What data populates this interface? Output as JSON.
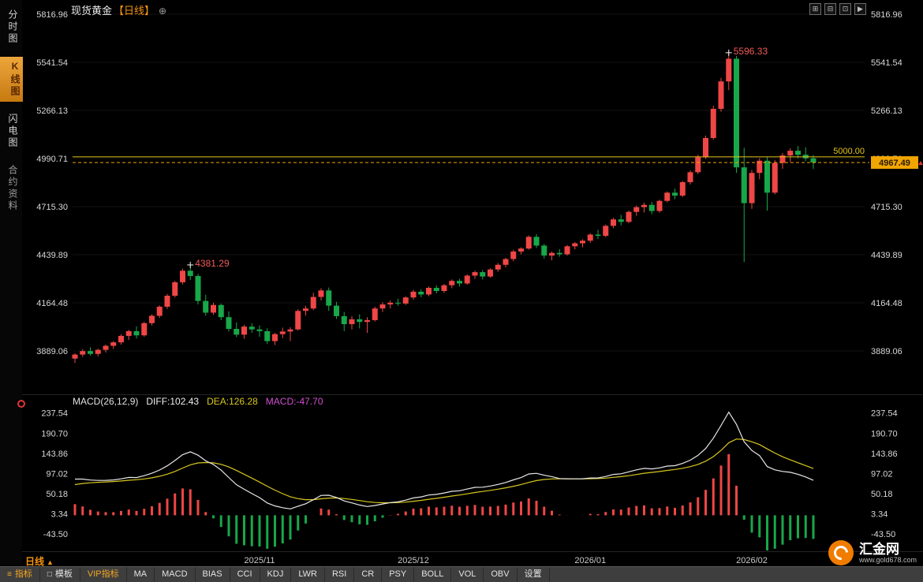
{
  "app": {
    "title_instrument": "现货黄金",
    "title_period": "【日线】",
    "add_icon": "⊕",
    "window_icons": [
      "⊞",
      "⊟",
      "⊡",
      "▶"
    ]
  },
  "sidebar": {
    "items": [
      {
        "label": "分时图",
        "active": false
      },
      {
        "label": "K线图",
        "active": true
      },
      {
        "label": "闪电图",
        "active": false
      },
      {
        "label": "合约资料",
        "active": false
      }
    ]
  },
  "footer": {
    "period_label": "日线",
    "period_arrow": "▲",
    "toolbar": [
      {
        "label": "指标",
        "accent": true,
        "icon": "≡",
        "name": "indicator-menu-button"
      },
      {
        "label": "模板",
        "accent": false,
        "icon": "□",
        "name": "template-menu-button"
      },
      {
        "label": "VIP指标",
        "accent": true,
        "name": "vip-indicator-button"
      },
      {
        "label": "MA",
        "name": "indicator-ma-button"
      },
      {
        "label": "MACD",
        "name": "indicator-macd-button"
      },
      {
        "label": "BIAS",
        "name": "indicator-bias-button"
      },
      {
        "label": "CCI",
        "name": "indicator-cci-button"
      },
      {
        "label": "KDJ",
        "name": "indicator-kdj-button"
      },
      {
        "label": "LWR",
        "name": "indicator-lwr-button"
      },
      {
        "label": "RSI",
        "name": "indicator-rsi-button"
      },
      {
        "label": "CR",
        "name": "indicator-cr-button"
      },
      {
        "label": "PSY",
        "name": "indicator-psy-button"
      },
      {
        "label": "BOLL",
        "name": "indicator-boll-button"
      },
      {
        "label": "VOL",
        "name": "indicator-vol-button"
      },
      {
        "label": "OBV",
        "name": "indicator-obv-button"
      },
      {
        "label": "设置",
        "name": "settings-button"
      }
    ],
    "logo": {
      "name": "汇金网",
      "url": "www.gold678.com"
    }
  },
  "chart_data": {
    "type": "candlestick",
    "instrument": "现货黄金",
    "period": "日线",
    "y_axis_labels": [
      5816.96,
      5541.54,
      5266.13,
      4990.71,
      4715.3,
      4439.89,
      4164.48,
      3889.06
    ],
    "y_range": [
      3654,
      5862
    ],
    "macd_axis_labels": [
      237.54,
      190.7,
      143.86,
      97.02,
      50.18,
      3.34,
      -43.5
    ],
    "macd_range": [
      -78,
      248
    ],
    "x_axis_labels": [
      {
        "label": "2025/11",
        "index": 24
      },
      {
        "label": "2025/12",
        "index": 44
      },
      {
        "label": "2026/01",
        "index": 67
      },
      {
        "label": "2026/02",
        "index": 88
      }
    ],
    "macd_header": {
      "title": "MACD(26,12,9)",
      "diff_label": "DIFF:102.43",
      "dea_label": "DEA:126.28",
      "macd_label": "MACD:-47.70"
    },
    "annotations": {
      "high_labels": [
        {
          "text": "4381.29",
          "index": 15
        },
        {
          "text": "5596.33",
          "index": 85
        }
      ],
      "price_line": {
        "value": 5000.0,
        "label": "5000.00"
      },
      "current_price": {
        "value": 4967.49,
        "label": "4967.49"
      }
    },
    "macd_seed": {
      "ema12": 3800,
      "ema26": 3715,
      "dea": 68
    },
    "colors": {
      "up": "#ef4646",
      "down": "#18a74a",
      "diff_line": "#e8e8e8",
      "dea_line": "#d8c71e",
      "price_line": "#e6c619",
      "current_box": "#f0a500",
      "annotation": "#f25a5a",
      "axis_text": "#d8d8d8"
    },
    "candles": [
      [
        3845,
        3875,
        3820,
        3868
      ],
      [
        3868,
        3898,
        3855,
        3888
      ],
      [
        3888,
        3910,
        3862,
        3872
      ],
      [
        3872,
        3902,
        3858,
        3895
      ],
      [
        3895,
        3925,
        3880,
        3918
      ],
      [
        3918,
        3945,
        3900,
        3938
      ],
      [
        3938,
        3985,
        3925,
        3975
      ],
      [
        3975,
        4010,
        3952,
        4002
      ],
      [
        4002,
        4030,
        3960,
        3978
      ],
      [
        3978,
        4055,
        3970,
        4048
      ],
      [
        4048,
        4098,
        4035,
        4090
      ],
      [
        4090,
        4150,
        4078,
        4142
      ],
      [
        4142,
        4215,
        4130,
        4205
      ],
      [
        4205,
        4290,
        4195,
        4282
      ],
      [
        4282,
        4360,
        4270,
        4348
      ],
      [
        4348,
        4381.29,
        4295,
        4318
      ],
      [
        4318,
        4330,
        4155,
        4175
      ],
      [
        4175,
        4210,
        4090,
        4108
      ],
      [
        4108,
        4165,
        4095,
        4152
      ],
      [
        4152,
        4160,
        4065,
        4082
      ],
      [
        4082,
        4115,
        4000,
        4015
      ],
      [
        4015,
        4052,
        3968,
        3982
      ],
      [
        3982,
        4038,
        3958,
        4028
      ],
      [
        4028,
        4048,
        3992,
        4012
      ],
      [
        4012,
        4035,
        3970,
        4002
      ],
      [
        4002,
        4018,
        3928,
        3945
      ],
      [
        3945,
        3992,
        3922,
        3985
      ],
      [
        3985,
        4022,
        3962,
        4000
      ],
      [
        4000,
        4025,
        3945,
        4012
      ],
      [
        4012,
        4128,
        4005,
        4118
      ],
      [
        4118,
        4148,
        4092,
        4132
      ],
      [
        4132,
        4222,
        4122,
        4198
      ],
      [
        4198,
        4248,
        4178,
        4235
      ],
      [
        4235,
        4252,
        4118,
        4148
      ],
      [
        4148,
        4170,
        4072,
        4088
      ],
      [
        4088,
        4112,
        4002,
        4042
      ],
      [
        4042,
        4088,
        4012,
        4070
      ],
      [
        4070,
        4098,
        4018,
        4055
      ],
      [
        4055,
        4082,
        3992,
        4065
      ],
      [
        4065,
        4142,
        4058,
        4132
      ],
      [
        4132,
        4168,
        4112,
        4155
      ],
      [
        4155,
        4178,
        4132,
        4165
      ],
      [
        4165,
        4188,
        4148,
        4160
      ],
      [
        4160,
        4202,
        4152,
        4195
      ],
      [
        4195,
        4238,
        4182,
        4228
      ],
      [
        4228,
        4242,
        4196,
        4212
      ],
      [
        4212,
        4258,
        4202,
        4250
      ],
      [
        4250,
        4265,
        4218,
        4232
      ],
      [
        4232,
        4272,
        4222,
        4265
      ],
      [
        4265,
        4298,
        4248,
        4290
      ],
      [
        4290,
        4302,
        4258,
        4275
      ],
      [
        4275,
        4328,
        4268,
        4320
      ],
      [
        4320,
        4348,
        4302,
        4340
      ],
      [
        4340,
        4352,
        4298,
        4315
      ],
      [
        4315,
        4362,
        4308,
        4355
      ],
      [
        4355,
        4392,
        4342,
        4382
      ],
      [
        4382,
        4422,
        4368,
        4415
      ],
      [
        4415,
        4468,
        4402,
        4458
      ],
      [
        4458,
        4482,
        4442,
        4475
      ],
      [
        4475,
        4550,
        4468,
        4542
      ],
      [
        4542,
        4558,
        4478,
        4492
      ],
      [
        4492,
        4502,
        4418,
        4435
      ],
      [
        4435,
        4458,
        4408,
        4450
      ],
      [
        4450,
        4472,
        4428,
        4442
      ],
      [
        4442,
        4495,
        4435,
        4488
      ],
      [
        4488,
        4512,
        4470,
        4505
      ],
      [
        4505,
        4528,
        4482,
        4520
      ],
      [
        4520,
        4562,
        4508,
        4555
      ],
      [
        4555,
        4582,
        4530,
        4548
      ],
      [
        4548,
        4612,
        4540,
        4605
      ],
      [
        4605,
        4650,
        4592,
        4642
      ],
      [
        4642,
        4668,
        4608,
        4628
      ],
      [
        4628,
        4692,
        4620,
        4685
      ],
      [
        4685,
        4722,
        4662,
        4712
      ],
      [
        4712,
        4738,
        4682,
        4725
      ],
      [
        4725,
        4742,
        4672,
        4690
      ],
      [
        4690,
        4755,
        4680,
        4748
      ],
      [
        4748,
        4802,
        4740,
        4795
      ],
      [
        4795,
        4818,
        4758,
        4778
      ],
      [
        4778,
        4862,
        4770,
        4855
      ],
      [
        4855,
        4922,
        4842,
        4912
      ],
      [
        4912,
        5012,
        4902,
        4998
      ],
      [
        4998,
        5122,
        4988,
        5108
      ],
      [
        5108,
        5292,
        5098,
        5275
      ],
      [
        5275,
        5452,
        5258,
        5432
      ],
      [
        5432,
        5596.33,
        5382,
        5562
      ],
      [
        5562,
        5578,
        4908,
        4940
      ],
      [
        4940,
        5052,
        4398,
        4735
      ],
      [
        4735,
        4925,
        4702,
        4908
      ],
      [
        4908,
        4992,
        4872,
        4978
      ],
      [
        4978,
        4998,
        4692,
        4795
      ],
      [
        4795,
        4982,
        4785,
        4965
      ],
      [
        4965,
        5022,
        4932,
        5008
      ],
      [
        5008,
        5050,
        4970,
        5035
      ],
      [
        5035,
        5062,
        4992,
        5012
      ],
      [
        5012,
        5055,
        4975,
        4992
      ],
      [
        4992,
        5010,
        4930,
        4967.49
      ]
    ]
  }
}
